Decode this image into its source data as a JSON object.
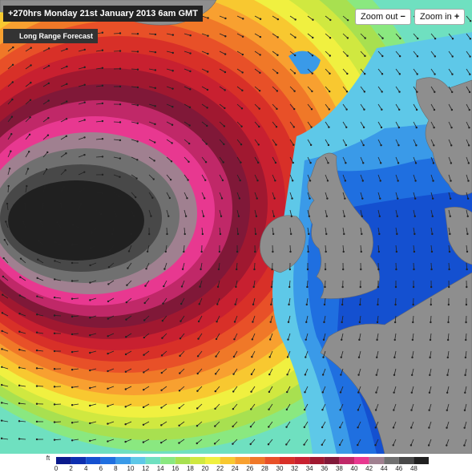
{
  "header": {
    "title": "+270hrs Monday 21st January 2013 6am GMT",
    "badge": "Long Range Forecast"
  },
  "controls": {
    "zoom_out": "Zoom out",
    "zoom_in": "Zoom in"
  },
  "legend": {
    "unit": "ft",
    "items": [
      {
        "label": 0,
        "color": "#0a1a8c"
      },
      {
        "label": 2,
        "color": "#0d2fb0"
      },
      {
        "label": 4,
        "color": "#1450d0"
      },
      {
        "label": 6,
        "color": "#1f6fe0"
      },
      {
        "label": 8,
        "color": "#3a9ae8"
      },
      {
        "label": 10,
        "color": "#5ec8e8"
      },
      {
        "label": 12,
        "color": "#6fe0c0"
      },
      {
        "label": 14,
        "color": "#8ae880"
      },
      {
        "label": 16,
        "color": "#a8e050"
      },
      {
        "label": 18,
        "color": "#d0e840"
      },
      {
        "label": 20,
        "color": "#f0f040"
      },
      {
        "label": 22,
        "color": "#f8c830"
      },
      {
        "label": 24,
        "color": "#f8a030"
      },
      {
        "label": 26,
        "color": "#f07828"
      },
      {
        "label": 28,
        "color": "#e85028"
      },
      {
        "label": 30,
        "color": "#d83028"
      },
      {
        "label": 32,
        "color": "#c82030"
      },
      {
        "label": 34,
        "color": "#a01830"
      },
      {
        "label": 36,
        "color": "#801838"
      },
      {
        "label": 38,
        "color": "#c02868"
      },
      {
        "label": 40,
        "color": "#e83890"
      },
      {
        "label": 42,
        "color": "#a08090"
      },
      {
        "label": 44,
        "color": "#707070"
      },
      {
        "label": 46,
        "color": "#484848"
      },
      {
        "label": 48,
        "color": "#202020"
      }
    ]
  }
}
